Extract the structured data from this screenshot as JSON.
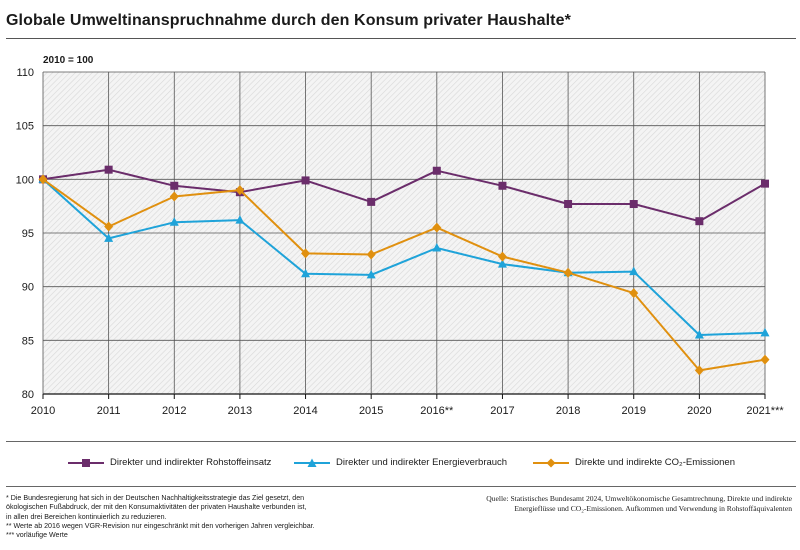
{
  "title": "Globale Umweltinanspruchnahme durch den Konsum privater Haushalte*",
  "chart_data": {
    "type": "line",
    "ylabel": "2010 = 100",
    "ylim": [
      80,
      110
    ],
    "yticks": [
      80,
      85,
      90,
      95,
      100,
      105,
      110
    ],
    "categories": [
      "2010",
      "2011",
      "2012",
      "2013",
      "2014",
      "2015",
      "2016**",
      "2017",
      "2018",
      "2019",
      "2020",
      "2021***"
    ],
    "grid": true,
    "legend_position": "bottom",
    "series": [
      {
        "name": "Direkter und indirekter Rohstoffeinsatz",
        "color": "#6b2d6b",
        "marker": "square",
        "values": [
          100,
          100.9,
          99.4,
          98.8,
          99.9,
          97.9,
          100.8,
          99.4,
          97.7,
          97.7,
          96.1,
          99.6
        ]
      },
      {
        "name": "Direkter und indirekter Energieverbrauch",
        "color": "#1fa3d9",
        "marker": "triangle",
        "values": [
          100,
          94.5,
          96.0,
          96.2,
          91.2,
          91.1,
          93.6,
          92.1,
          91.3,
          91.4,
          85.5,
          85.7
        ]
      },
      {
        "name": "Direkte und indirekte CO₂-Emissionen",
        "color": "#e0900f",
        "marker": "diamond",
        "values": [
          100,
          95.6,
          98.4,
          99.0,
          93.1,
          93.0,
          95.5,
          92.8,
          91.3,
          89.4,
          82.2,
          83.2
        ]
      }
    ]
  },
  "footnotes": [
    "* Die Bundesregierung hat sich in der Deutschen Nachhaltigkeitsstrategie das Ziel gesetzt, den",
    "ökologischen Fußabdruck, der mit den Konsumaktivitäten der privaten Haushalte verbunden ist,",
    "in allen drei Bereichen kontinuierlich zu reduzieren.",
    "** Werte ab 2016 wegen VGR-Revision nur eingeschränkt mit den vorherigen Jahren vergleichbar.",
    "*** vorläufige Werte"
  ],
  "source": [
    "Quelle: Statistisches Bundesamt 2024, Umweltökonomische Gesamtrechnung, Direkte und indirekte",
    "Energieflüsse und CO₂-Emissionen. Aufkommen und Verwendung in Rohstoffäquivalenten"
  ]
}
